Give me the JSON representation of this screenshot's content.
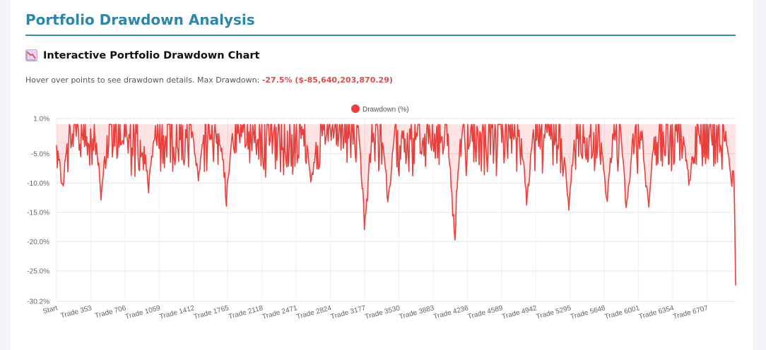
{
  "header": {
    "title": "Portfolio Drawdown Analysis"
  },
  "section": {
    "icon": "chart-decreasing-icon",
    "title": "Interactive Portfolio Drawdown Chart",
    "description": "Hover over points to see drawdown details. Max Drawdown: ",
    "max_drawdown": "-27.5% ($-85,640,203,870.29)"
  },
  "colors": {
    "accent": "#2e86ab",
    "series_line": "#e8403c",
    "series_fill": "rgba(239,68,68,0.15)",
    "highlight": "#e04a4a"
  },
  "chart_data": {
    "type": "area",
    "legend_position": "top-center",
    "grid": true,
    "series": [
      {
        "name": "Drawdown (%)"
      }
    ],
    "ylim": [
      -30.2,
      1.0
    ],
    "y_ticks": [
      "1.0%",
      "-5.0%",
      "-10.0%",
      "-15.0%",
      "-20.0%",
      "-25.0%",
      "-30.2%"
    ],
    "x_ticks": [
      "Start",
      "Trade 353",
      "Trade 706",
      "Trade 1059",
      "Trade 1412",
      "Trade 1765",
      "Trade 2118",
      "Trade 2471",
      "Trade 2824",
      "Trade 3177",
      "Trade 3530",
      "Trade 3883",
      "Trade 4236",
      "Trade 4589",
      "Trade 4942",
      "Trade 5295",
      "Trade 5648",
      "Trade 6001",
      "Trade 6354",
      "Trade 6707"
    ],
    "num_trades": 7000,
    "max_drawdown_pct": -27.5,
    "major_troughs": [
      {
        "trade": 60,
        "value": -12.7
      },
      {
        "trade": 460,
        "value": -13.4
      },
      {
        "trade": 950,
        "value": -12.4
      },
      {
        "trade": 1460,
        "value": -10.9
      },
      {
        "trade": 1750,
        "value": -14.1
      },
      {
        "trade": 2630,
        "value": -11.6
      },
      {
        "trade": 3180,
        "value": -20.9
      },
      {
        "trade": 3420,
        "value": -15.9
      },
      {
        "trade": 4100,
        "value": -22.6
      },
      {
        "trade": 4850,
        "value": -15.2
      },
      {
        "trade": 5280,
        "value": -16.4
      },
      {
        "trade": 5670,
        "value": -15.5
      },
      {
        "trade": 5880,
        "value": -17.0
      },
      {
        "trade": 6100,
        "value": -17.3
      },
      {
        "trade": 6520,
        "value": -12.1
      },
      {
        "trade": 6960,
        "value": -12.0
      },
      {
        "trade": 7000,
        "value": -27.5
      }
    ]
  }
}
